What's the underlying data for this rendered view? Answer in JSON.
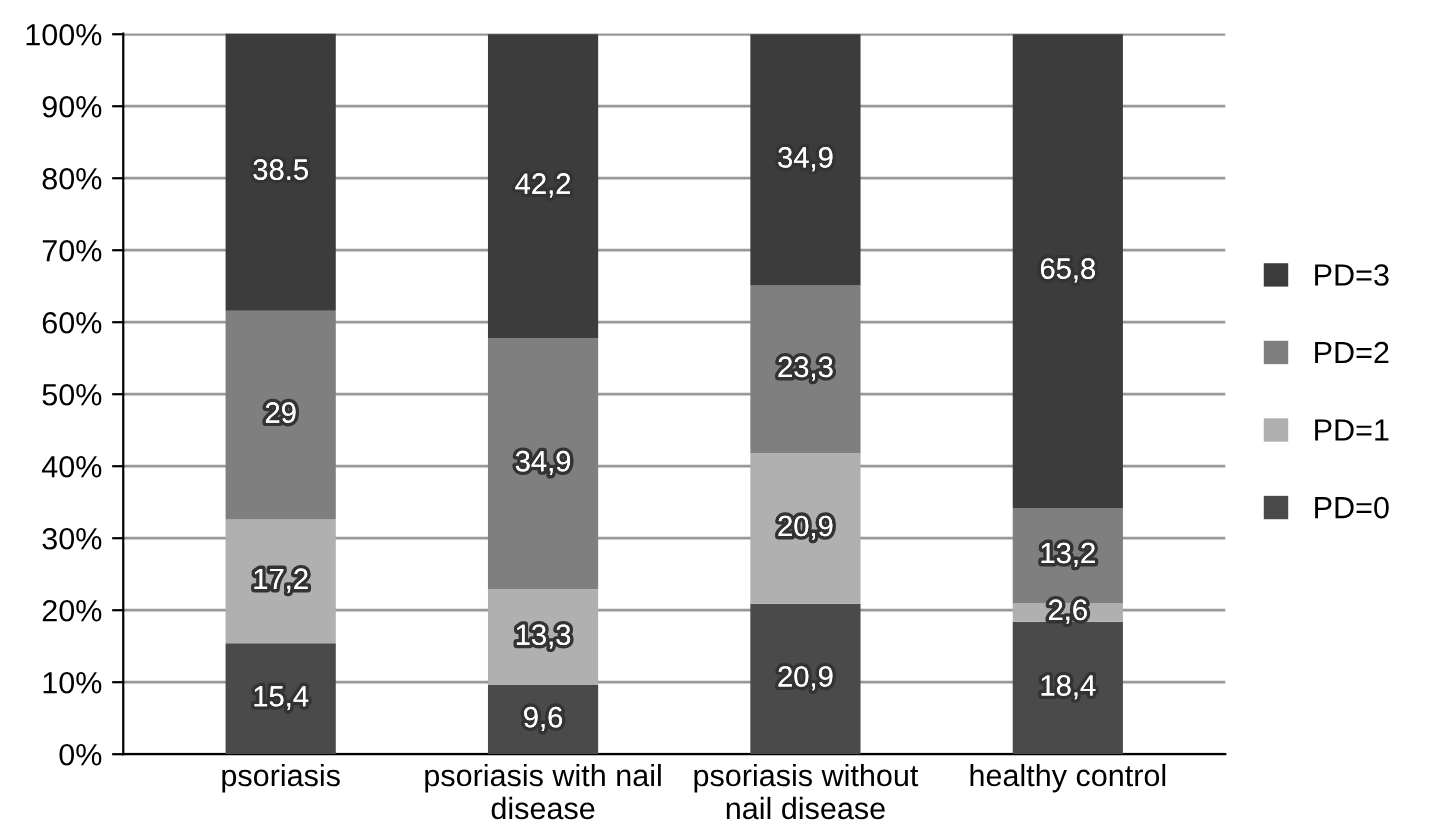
{
  "chart_data": {
    "type": "bar",
    "stacked": true,
    "categories": [
      "psoriasis",
      "psoriasis with nail\ndisease",
      "psoriasis without\nnail disease",
      "healthy control"
    ],
    "series": [
      {
        "name": "PD=0",
        "color": "#4a4a4a",
        "values": [
          15.4,
          9.6,
          20.9,
          18.4
        ],
        "value_labels": [
          "15,4",
          "9,6",
          "20,9",
          "18,4"
        ]
      },
      {
        "name": "PD=1",
        "color": "#b0b0b0",
        "values": [
          17.2,
          13.3,
          20.9,
          2.6
        ],
        "value_labels": [
          "17,2",
          "13,3",
          "20,9",
          "2,6"
        ]
      },
      {
        "name": "PD=2",
        "color": "#7f7f7f",
        "values": [
          29,
          34.9,
          23.3,
          13.2
        ],
        "value_labels": [
          "29",
          "34,9",
          "23,3",
          "13,2"
        ]
      },
      {
        "name": "PD=3",
        "color": "#3c3c3c",
        "values": [
          38.5,
          42.2,
          34.9,
          65.8
        ],
        "value_labels": [
          "38.5",
          "42,2",
          "34,9",
          "65,8"
        ]
      }
    ],
    "ylim": [
      0,
      100.1
    ],
    "yticks": [
      {
        "value": 0,
        "label": "0%"
      },
      {
        "value": 10,
        "label": "10%"
      },
      {
        "value": 20,
        "label": "20%"
      },
      {
        "value": 30,
        "label": "30%"
      },
      {
        "value": 40,
        "label": "40%"
      },
      {
        "value": 50,
        "label": "50%"
      },
      {
        "value": 60,
        "label": "60%"
      },
      {
        "value": 70,
        "label": "70%"
      },
      {
        "value": 80,
        "label": "80%"
      },
      {
        "value": 90,
        "label": "90%"
      },
      {
        "value": 100,
        "label": "100%"
      }
    ],
    "grid": "y",
    "legend": "right"
  }
}
